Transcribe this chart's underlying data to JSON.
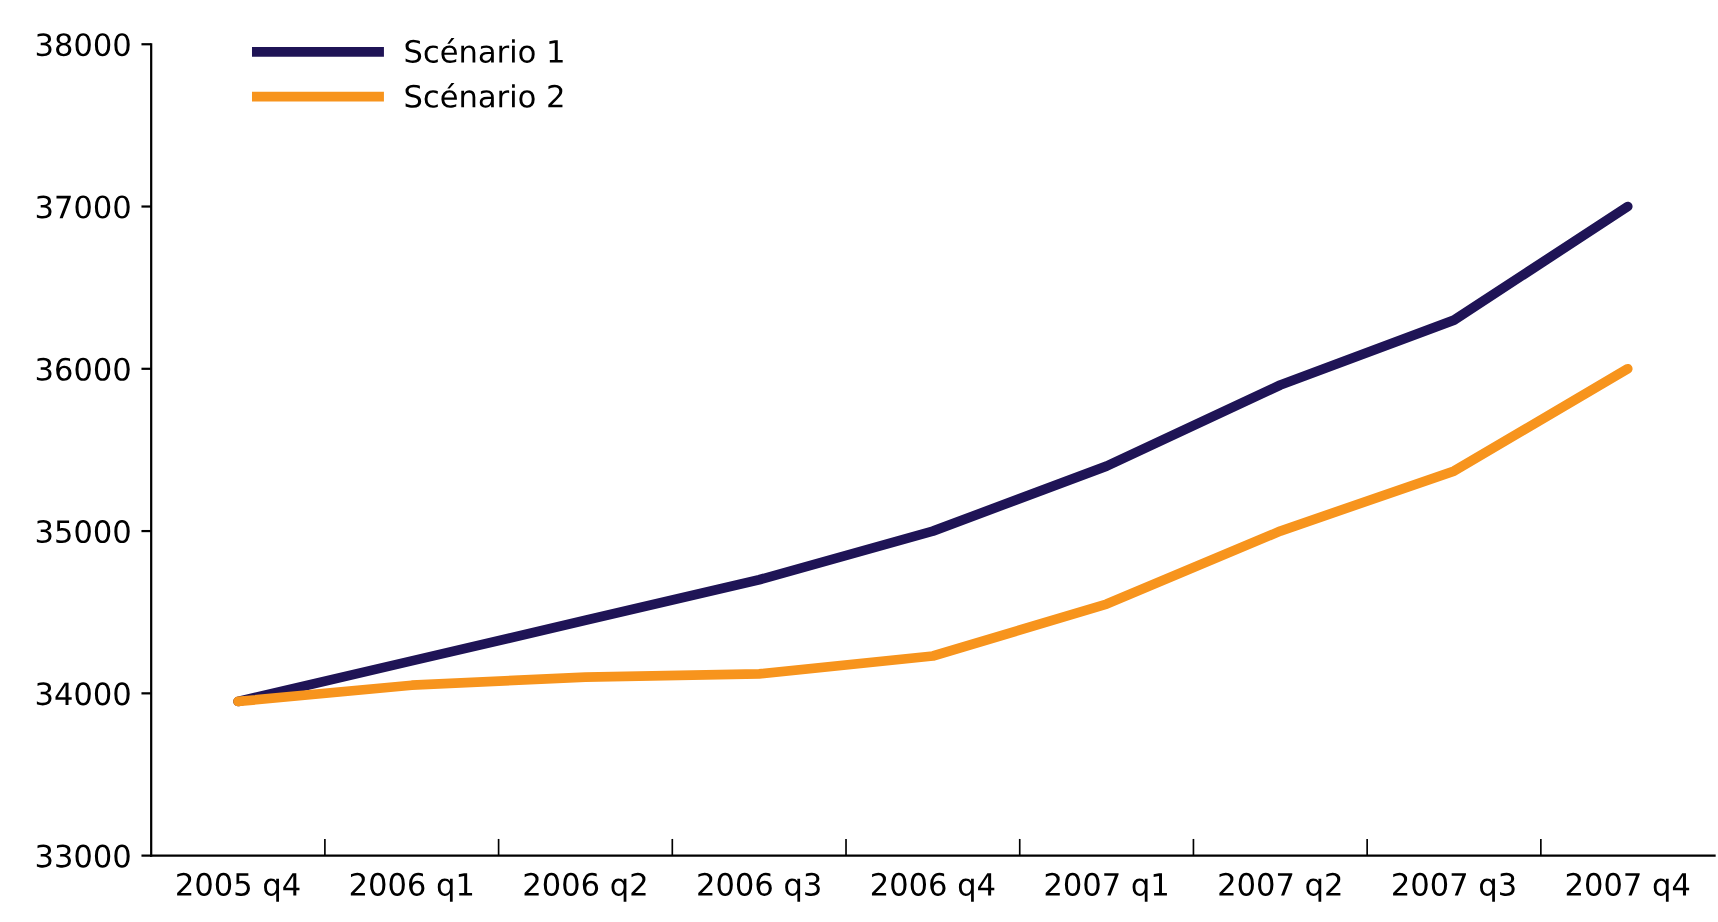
{
  "chart_data": {
    "type": "line",
    "categories": [
      "2005 q4",
      "2006 q1",
      "2006 q2",
      "2006 q3",
      "2006 q4",
      "2007 q1",
      "2007 q2",
      "2007 q3",
      "2007 q4"
    ],
    "series": [
      {
        "name": "Scénario 1",
        "color": "#1f1456",
        "values": [
          33950,
          34200,
          34450,
          34700,
          35000,
          35400,
          35900,
          36300,
          37000
        ]
      },
      {
        "name": "Scénario 2",
        "color": "#f7941d",
        "values": [
          33950,
          34050,
          34100,
          34120,
          34230,
          34550,
          35000,
          35370,
          36000
        ]
      }
    ],
    "ylim": [
      33000,
      38000
    ],
    "yticks": [
      33000,
      34000,
      35000,
      36000,
      37000,
      38000
    ],
    "grid": false,
    "legend": "top left",
    "marker": "none",
    "line_style": "solid"
  }
}
